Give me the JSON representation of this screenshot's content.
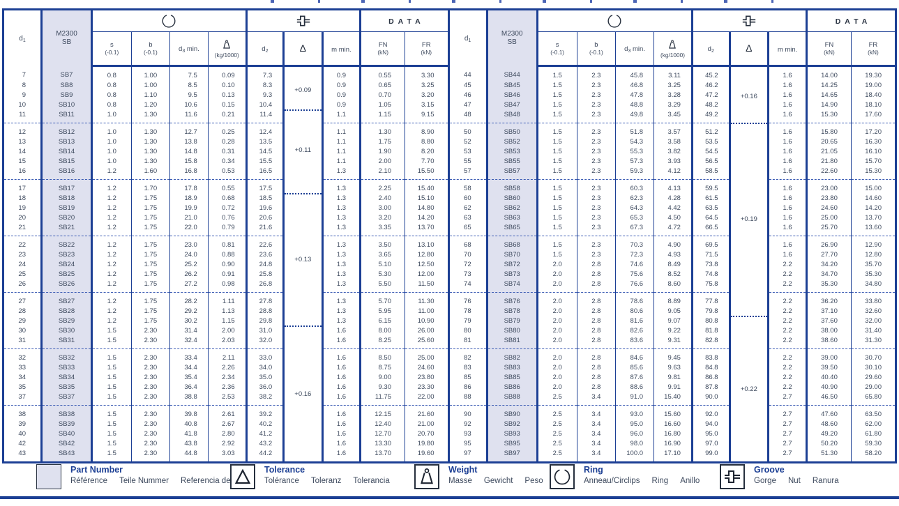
{
  "colors": {
    "navy": "#1c3f94",
    "lavender": "#dfe1ef",
    "text": "#3e4a5e",
    "glyph": "#262f3d",
    "dashed": "#3c5cb4"
  },
  "header": {
    "d1": {
      "base": "d",
      "sub": "1"
    },
    "part": {
      "line1": "M2300",
      "line2": "SB"
    },
    "ring_icon": "ring-icon",
    "groove_icon": "groove-icon",
    "data_label": "DATA",
    "s": {
      "top": "s",
      "bottom": "(-0.1)"
    },
    "b": {
      "top": "b",
      "bottom": "(-0.1)"
    },
    "d3": {
      "base": "d",
      "sub": "3",
      "suffix": " min."
    },
    "weight": {
      "icon": "weight-icon",
      "bottom": "(kg/1000)"
    },
    "d2": {
      "base": "d",
      "sub": "2"
    },
    "delta": "Δ",
    "m": "m  min.",
    "fn": {
      "top": "FN",
      "bottom": "(kN)"
    },
    "fr": {
      "top": "FR",
      "bottom": "(kN)"
    }
  },
  "group_size": 5,
  "tables": {
    "left": {
      "tolerance_zones": [
        {
          "label": "+0.09",
          "rows": 4
        },
        {
          "label": "+0.11",
          "rows": 7
        },
        {
          "label": "+0.13",
          "rows": 12
        },
        {
          "label": "+0.16",
          "rows": 12
        }
      ],
      "rows": [
        [
          "7",
          "SB7",
          "0.8",
          "1.00",
          "7.5",
          "0.09",
          "7.3",
          "0.9",
          "0.55",
          "3.30"
        ],
        [
          "8",
          "SB8",
          "0.8",
          "1.00",
          "8.5",
          "0.10",
          "8.3",
          "0.9",
          "0.65",
          "3.25"
        ],
        [
          "9",
          "SB9",
          "0.8",
          "1.10",
          "9.5",
          "0.13",
          "9.3",
          "0.9",
          "0.70",
          "3.20"
        ],
        [
          "10",
          "SB10",
          "0.8",
          "1.20",
          "10.6",
          "0.15",
          "10.4",
          "0.9",
          "1.05",
          "3.15"
        ],
        [
          "11",
          "SB11",
          "1.0",
          "1.30",
          "11.6",
          "0.21",
          "11.4",
          "1.1",
          "1.15",
          "9.15"
        ],
        [
          "12",
          "SB12",
          "1.0",
          "1.30",
          "12.7",
          "0.25",
          "12.4",
          "1.1",
          "1.30",
          "8.90"
        ],
        [
          "13",
          "SB13",
          "1.0",
          "1.30",
          "13.8",
          "0.28",
          "13.5",
          "1.1",
          "1.75",
          "8.80"
        ],
        [
          "14",
          "SB14",
          "1.0",
          "1.30",
          "14.8",
          "0.31",
          "14.5",
          "1.1",
          "1.90",
          "8.20"
        ],
        [
          "15",
          "SB15",
          "1.0",
          "1.30",
          "15.8",
          "0.34",
          "15.5",
          "1.1",
          "2.00",
          "7.70"
        ],
        [
          "16",
          "SB16",
          "1.2",
          "1.60",
          "16.8",
          "0.53",
          "16.5",
          "1.3",
          "2.10",
          "15.50"
        ],
        [
          "17",
          "SB17",
          "1.2",
          "1.70",
          "17.8",
          "0.55",
          "17.5",
          "1.3",
          "2.25",
          "15.40"
        ],
        [
          "18",
          "SB18",
          "1.2",
          "1.75",
          "18.9",
          "0.68",
          "18.5",
          "1.3",
          "2.40",
          "15.10"
        ],
        [
          "19",
          "SB19",
          "1.2",
          "1.75",
          "19.9",
          "0.72",
          "19.6",
          "1.3",
          "3.00",
          "14.80"
        ],
        [
          "20",
          "SB20",
          "1.2",
          "1.75",
          "21.0",
          "0.76",
          "20.6",
          "1.3",
          "3.20",
          "14.20"
        ],
        [
          "21",
          "SB21",
          "1.2",
          "1.75",
          "22.0",
          "0.79",
          "21.6",
          "1.3",
          "3.35",
          "13.70"
        ],
        [
          "22",
          "SB22",
          "1.2",
          "1.75",
          "23.0",
          "0.81",
          "22.6",
          "1.3",
          "3.50",
          "13.10"
        ],
        [
          "23",
          "SB23",
          "1.2",
          "1.75",
          "24.0",
          "0.88",
          "23.6",
          "1.3",
          "3.65",
          "12.80"
        ],
        [
          "24",
          "SB24",
          "1.2",
          "1.75",
          "25.2",
          "0.90",
          "24.8",
          "1.3",
          "5.10",
          "12.50"
        ],
        [
          "25",
          "SB25",
          "1.2",
          "1.75",
          "26.2",
          "0.91",
          "25.8",
          "1.3",
          "5.30",
          "12.00"
        ],
        [
          "26",
          "SB26",
          "1.2",
          "1.75",
          "27.2",
          "0.98",
          "26.8",
          "1.3",
          "5.50",
          "11.50"
        ],
        [
          "27",
          "SB27",
          "1.2",
          "1.75",
          "28.2",
          "1.11",
          "27.8",
          "1.3",
          "5.70",
          "11.30"
        ],
        [
          "28",
          "SB28",
          "1.2",
          "1.75",
          "29.2",
          "1.13",
          "28.8",
          "1.3",
          "5.95",
          "11.00"
        ],
        [
          "29",
          "SB29",
          "1.2",
          "1.75",
          "30.2",
          "1.15",
          "29.8",
          "1.3",
          "6.15",
          "10.90"
        ],
        [
          "30",
          "SB30",
          "1.5",
          "2.30",
          "31.4",
          "2.00",
          "31.0",
          "1.6",
          "8.00",
          "26.00"
        ],
        [
          "31",
          "SB31",
          "1.5",
          "2.30",
          "32.4",
          "2.03",
          "32.0",
          "1.6",
          "8.25",
          "25.60"
        ],
        [
          "32",
          "SB32",
          "1.5",
          "2.30",
          "33.4",
          "2.11",
          "33.0",
          "1.6",
          "8.50",
          "25.00"
        ],
        [
          "33",
          "SB33",
          "1.5",
          "2.30",
          "34.4",
          "2.26",
          "34.0",
          "1.6",
          "8.75",
          "24.60"
        ],
        [
          "34",
          "SB34",
          "1.5",
          "2.30",
          "35.4",
          "2.34",
          "35.0",
          "1.6",
          "9.00",
          "23.80"
        ],
        [
          "35",
          "SB35",
          "1.5",
          "2.30",
          "36.4",
          "2.36",
          "36.0",
          "1.6",
          "9.30",
          "23.30"
        ],
        [
          "37",
          "SB37",
          "1.5",
          "2.30",
          "38.8",
          "2.53",
          "38.2",
          "1.6",
          "11.75",
          "22.00"
        ],
        [
          "38",
          "SB38",
          "1.5",
          "2.30",
          "39.8",
          "2.61",
          "39.2",
          "1.6",
          "12.15",
          "21.60"
        ],
        [
          "39",
          "SB39",
          "1.5",
          "2.30",
          "40.8",
          "2.67",
          "40.2",
          "1.6",
          "12.40",
          "21.00"
        ],
        [
          "40",
          "SB40",
          "1.5",
          "2.30",
          "41.8",
          "2.80",
          "41.2",
          "1.6",
          "12.70",
          "20.70"
        ],
        [
          "42",
          "SB42",
          "1.5",
          "2.30",
          "43.8",
          "2.92",
          "43.2",
          "1.6",
          "13.30",
          "19.80"
        ],
        [
          "43",
          "SB43",
          "1.5",
          "2.30",
          "44.8",
          "3.03",
          "44.2",
          "1.6",
          "13.70",
          "19.60"
        ]
      ]
    },
    "right": {
      "tolerance_zones": [
        {
          "label": "+0.16",
          "rows": 5
        },
        {
          "label": "+0.19",
          "rows": 17
        },
        {
          "label": "+0.22",
          "rows": 13
        }
      ],
      "rows": [
        [
          "44",
          "SB44",
          "1.5",
          "2.3",
          "45.8",
          "3.11",
          "45.2",
          "1.6",
          "14.00",
          "19.30"
        ],
        [
          "45",
          "SB45",
          "1.5",
          "2.3",
          "46.8",
          "3.25",
          "46.2",
          "1.6",
          "14.25",
          "19.00"
        ],
        [
          "46",
          "SB46",
          "1.5",
          "2.3",
          "47.8",
          "3.28",
          "47.2",
          "1.6",
          "14.65",
          "18.40"
        ],
        [
          "47",
          "SB47",
          "1.5",
          "2.3",
          "48.8",
          "3.29",
          "48.2",
          "1.6",
          "14.90",
          "18.10"
        ],
        [
          "48",
          "SB48",
          "1.5",
          "2.3",
          "49.8",
          "3.45",
          "49.2",
          "1.6",
          "15.30",
          "17.60"
        ],
        [
          "50",
          "SB50",
          "1.5",
          "2.3",
          "51.8",
          "3.57",
          "51.2",
          "1.6",
          "15.80",
          "17.20"
        ],
        [
          "52",
          "SB52",
          "1.5",
          "2.3",
          "54.3",
          "3.58",
          "53.5",
          "1.6",
          "20.65",
          "16.30"
        ],
        [
          "53",
          "SB53",
          "1.5",
          "2.3",
          "55.3",
          "3.82",
          "54.5",
          "1.6",
          "21.05",
          "16.10"
        ],
        [
          "55",
          "SB55",
          "1.5",
          "2.3",
          "57.3",
          "3.93",
          "56.5",
          "1.6",
          "21.80",
          "15.70"
        ],
        [
          "57",
          "SB57",
          "1.5",
          "2.3",
          "59.3",
          "4.12",
          "58.5",
          "1.6",
          "22.60",
          "15.30"
        ],
        [
          "58",
          "SB58",
          "1.5",
          "2.3",
          "60.3",
          "4.13",
          "59.5",
          "1.6",
          "23.00",
          "15.00"
        ],
        [
          "60",
          "SB60",
          "1.5",
          "2.3",
          "62.3",
          "4.28",
          "61.5",
          "1.6",
          "23.80",
          "14.60"
        ],
        [
          "62",
          "SB62",
          "1.5",
          "2.3",
          "64.3",
          "4.42",
          "63.5",
          "1.6",
          "24.60",
          "14.20"
        ],
        [
          "63",
          "SB63",
          "1.5",
          "2.3",
          "65.3",
          "4.50",
          "64.5",
          "1.6",
          "25.00",
          "13.70"
        ],
        [
          "65",
          "SB65",
          "1.5",
          "2.3",
          "67.3",
          "4.72",
          "66.5",
          "1.6",
          "25.70",
          "13.60"
        ],
        [
          "68",
          "SB68",
          "1.5",
          "2.3",
          "70.3",
          "4.90",
          "69.5",
          "1.6",
          "26.90",
          "12.90"
        ],
        [
          "70",
          "SB70",
          "1.5",
          "2.3",
          "72.3",
          "4.93",
          "71.5",
          "1.6",
          "27.70",
          "12.80"
        ],
        [
          "72",
          "SB72",
          "2.0",
          "2.8",
          "74.6",
          "8.49",
          "73.8",
          "2.2",
          "34.20",
          "35.70"
        ],
        [
          "73",
          "SB73",
          "2.0",
          "2.8",
          "75.6",
          "8.52",
          "74.8",
          "2.2",
          "34.70",
          "35.30"
        ],
        [
          "74",
          "SB74",
          "2.0",
          "2.8",
          "76.6",
          "8.60",
          "75.8",
          "2.2",
          "35.30",
          "34.80"
        ],
        [
          "76",
          "SB76",
          "2.0",
          "2.8",
          "78.6",
          "8.89",
          "77.8",
          "2.2",
          "36.20",
          "33.80"
        ],
        [
          "78",
          "SB78",
          "2.0",
          "2.8",
          "80.6",
          "9.05",
          "79.8",
          "2.2",
          "37.10",
          "32.60"
        ],
        [
          "79",
          "SB79",
          "2.0",
          "2.8",
          "81.6",
          "9.07",
          "80.8",
          "2.2",
          "37.60",
          "32.00"
        ],
        [
          "80",
          "SB80",
          "2.0",
          "2.8",
          "82.6",
          "9.22",
          "81.8",
          "2.2",
          "38.00",
          "31.40"
        ],
        [
          "81",
          "SB81",
          "2.0",
          "2.8",
          "83.6",
          "9.31",
          "82.8",
          "2.2",
          "38.60",
          "31.30"
        ],
        [
          "82",
          "SB82",
          "2.0",
          "2.8",
          "84.6",
          "9.45",
          "83.8",
          "2.2",
          "39.00",
          "30.70"
        ],
        [
          "83",
          "SB83",
          "2.0",
          "2.8",
          "85.6",
          "9.63",
          "84.8",
          "2.2",
          "39.50",
          "30.10"
        ],
        [
          "85",
          "SB85",
          "2.0",
          "2.8",
          "87.6",
          "9.81",
          "86.8",
          "2.2",
          "40.40",
          "29.60"
        ],
        [
          "86",
          "SB86",
          "2.0",
          "2.8",
          "88.6",
          "9.91",
          "87.8",
          "2.2",
          "40.90",
          "29.00"
        ],
        [
          "88",
          "SB88",
          "2.5",
          "3.4",
          "91.0",
          "15.40",
          "90.0",
          "2.7",
          "46.50",
          "65.80"
        ],
        [
          "90",
          "SB90",
          "2.5",
          "3.4",
          "93.0",
          "15.60",
          "92.0",
          "2.7",
          "47.60",
          "63.50"
        ],
        [
          "92",
          "SB92",
          "2.5",
          "3.4",
          "95.0",
          "16.60",
          "94.0",
          "2.7",
          "48.60",
          "62.00"
        ],
        [
          "93",
          "SB93",
          "2.5",
          "3.4",
          "96.0",
          "16.80",
          "95.0",
          "2.7",
          "49.20",
          "61.80"
        ],
        [
          "95",
          "SB95",
          "2.5",
          "3.4",
          "98.0",
          "16.90",
          "97.0",
          "2.7",
          "50.20",
          "59.30"
        ],
        [
          "97",
          "SB97",
          "2.5",
          "3.4",
          "100.0",
          "17.10",
          "99.0",
          "2.7",
          "51.30",
          "58.20"
        ]
      ]
    }
  },
  "legend": {
    "items": [
      {
        "id": "part-number",
        "icon": "part-number-swatch-icon",
        "title": "Part Number",
        "translations": [
          "Référence",
          "Teile Nummer",
          "Referencia de pieza"
        ]
      },
      {
        "id": "tolerance",
        "icon": "tolerance-delta-icon",
        "title": "Tolerance",
        "translations": [
          "Tolérance",
          "Toleranz",
          "Tolerancia"
        ]
      },
      {
        "id": "weight",
        "icon": "weight-icon",
        "title": "Weight",
        "translations": [
          "Masse",
          "Gewicht",
          "Peso"
        ]
      },
      {
        "id": "ring",
        "icon": "ring-icon",
        "title": "Ring",
        "translations": [
          "Anneau/Circlips",
          "Ring",
          "Anillo"
        ]
      },
      {
        "id": "groove",
        "icon": "groove-icon",
        "title": "Groove",
        "translations": [
          "Gorge",
          "Nut",
          "Ranura"
        ]
      }
    ]
  }
}
